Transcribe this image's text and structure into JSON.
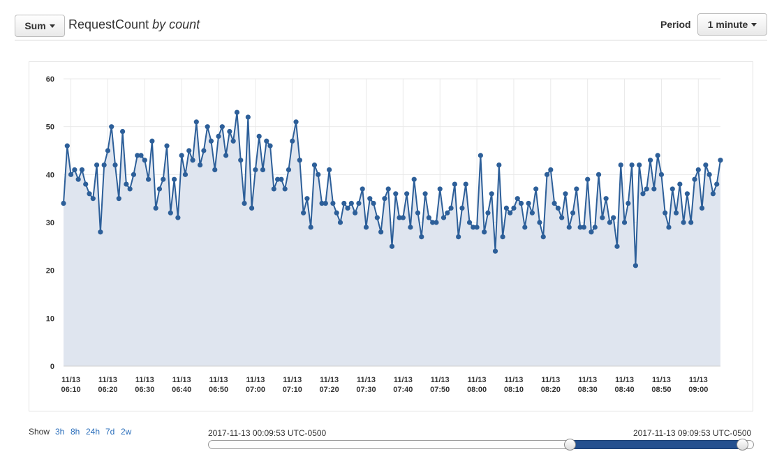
{
  "header": {
    "stat_label": "Sum",
    "metric_name": "RequestCount",
    "metric_unit": "by count",
    "period_label": "Period",
    "period_value": "1 minute"
  },
  "time_range": {
    "show_label": "Show",
    "options": [
      "3h",
      "8h",
      "24h",
      "7d",
      "2w"
    ],
    "start": "2017-11-13 00:09:53 UTC-0500",
    "end": "2017-11-13 09:09:53 UTC-0500",
    "selected_start_fraction": 0.667,
    "selected_end_fraction": 1.0
  },
  "colors": {
    "line": "#2d5f99",
    "area": "#dfe5ef",
    "grid": "#e9e9e9",
    "accent": "#2a6ebb"
  },
  "chart_data": {
    "type": "area",
    "title": "RequestCount by count",
    "xlabel": "",
    "ylabel": "",
    "ylim": [
      0,
      60
    ],
    "yticks": [
      0,
      10,
      20,
      30,
      40,
      50,
      60
    ],
    "x_start_minute": 368,
    "x_step_minutes": 1,
    "xticks": [
      {
        "minute": 370,
        "date": "11/13",
        "time": "06:10"
      },
      {
        "minute": 380,
        "date": "11/13",
        "time": "06:20"
      },
      {
        "minute": 390,
        "date": "11/13",
        "time": "06:30"
      },
      {
        "minute": 400,
        "date": "11/13",
        "time": "06:40"
      },
      {
        "minute": 410,
        "date": "11/13",
        "time": "06:50"
      },
      {
        "minute": 420,
        "date": "11/13",
        "time": "07:00"
      },
      {
        "minute": 430,
        "date": "11/13",
        "time": "07:10"
      },
      {
        "minute": 440,
        "date": "11/13",
        "time": "07:20"
      },
      {
        "minute": 450,
        "date": "11/13",
        "time": "07:30"
      },
      {
        "minute": 460,
        "date": "11/13",
        "time": "07:40"
      },
      {
        "minute": 470,
        "date": "11/13",
        "time": "07:50"
      },
      {
        "minute": 480,
        "date": "11/13",
        "time": "08:00"
      },
      {
        "minute": 490,
        "date": "11/13",
        "time": "08:10"
      },
      {
        "minute": 500,
        "date": "11/13",
        "time": "08:20"
      },
      {
        "minute": 510,
        "date": "11/13",
        "time": "08:30"
      },
      {
        "minute": 520,
        "date": "11/13",
        "time": "08:40"
      },
      {
        "minute": 530,
        "date": "11/13",
        "time": "08:50"
      },
      {
        "minute": 540,
        "date": "11/13",
        "time": "09:00"
      }
    ],
    "series": [
      {
        "name": "RequestCount",
        "values": [
          34,
          46,
          40,
          41,
          39,
          41,
          38,
          36,
          35,
          42,
          28,
          42,
          45,
          50,
          42,
          35,
          49,
          38,
          37,
          40,
          44,
          44,
          43,
          39,
          47,
          33,
          37,
          39,
          46,
          32,
          39,
          31,
          44,
          40,
          45,
          43,
          51,
          42,
          45,
          50,
          47,
          41,
          48,
          50,
          44,
          49,
          47,
          53,
          43,
          34,
          52,
          33,
          41,
          48,
          41,
          47,
          46,
          37,
          39,
          39,
          37,
          41,
          47,
          51,
          43,
          32,
          35,
          29,
          42,
          40,
          34,
          34,
          41,
          34,
          32,
          30,
          34,
          33,
          34,
          32,
          34,
          37,
          29,
          35,
          34,
          31,
          28,
          35,
          37,
          25,
          36,
          31,
          31,
          36,
          29,
          39,
          32,
          27,
          36,
          31,
          30,
          30,
          37,
          31,
          32,
          33,
          38,
          27,
          33,
          38,
          30,
          29,
          29,
          44,
          28,
          32,
          36,
          24,
          42,
          27,
          33,
          32,
          33,
          35,
          34,
          29,
          34,
          32,
          37,
          30,
          27,
          40,
          41,
          34,
          33,
          31,
          36,
          29,
          32,
          37,
          29,
          29,
          39,
          28,
          29,
          40,
          31,
          35,
          30,
          31,
          25,
          42,
          30,
          34,
          42,
          21,
          42,
          36,
          37,
          43,
          37,
          44,
          40,
          32,
          29,
          37,
          32,
          38,
          30,
          36,
          30,
          39,
          41,
          33,
          42,
          40,
          36,
          38,
          43
        ]
      }
    ]
  }
}
